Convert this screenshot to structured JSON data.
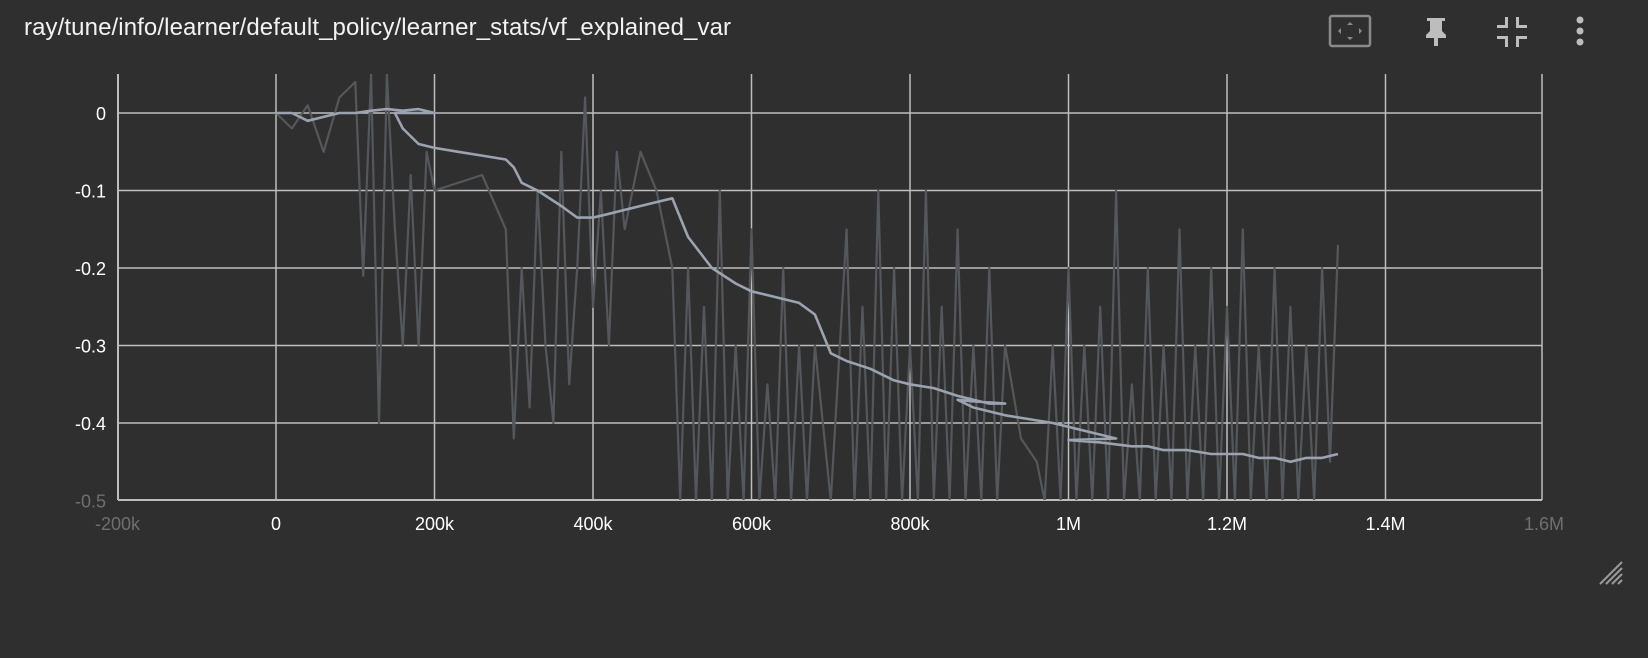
{
  "title": "ray/tune/info/learner/default_policy/learner_stats/vf_explained_var",
  "toolbar": [
    {
      "name": "fit-domain-button",
      "icon": "fit-domain-icon"
    },
    {
      "name": "pin-button",
      "icon": "pin-icon"
    },
    {
      "name": "collapse-button",
      "icon": "collapse-icon"
    },
    {
      "name": "more-menu-button",
      "icon": "more-vert-icon"
    }
  ],
  "colors": {
    "background": "#2f2f2f",
    "grid": "#bdbdbd",
    "raw_series": "#54575b",
    "smoothed_series": "#9aa3af",
    "text": "#ffffff"
  },
  "chart_data": {
    "type": "line",
    "title": "",
    "xlabel": "",
    "ylabel": "",
    "xlim": [
      -200000,
      1600000
    ],
    "ylim": [
      -0.5,
      0.05
    ],
    "grid": true,
    "x_ticks": [
      "-200k",
      "0",
      "200k",
      "400k",
      "600k",
      "800k",
      "1M",
      "1.2M",
      "1.4M",
      "1.6M"
    ],
    "y_ticks": [
      "0",
      "-0.1",
      "-0.2",
      "-0.3",
      "-0.4",
      "-0.5"
    ],
    "series": [
      {
        "x": [
          0,
          20000,
          40000,
          60000,
          80000,
          100000,
          110000,
          120000,
          130000,
          140000,
          150000,
          160000,
          170000,
          180000,
          190000,
          200000,
          260000,
          290000,
          300000,
          310000,
          320000,
          330000,
          340000,
          350000,
          360000,
          370000,
          380000,
          390000,
          400000,
          410000,
          420000,
          430000,
          440000,
          460000,
          480000,
          500000,
          510000,
          520000,
          530000,
          540000,
          550000,
          560000,
          570000,
          580000,
          590000,
          600000,
          610000,
          620000,
          630000,
          640000,
          650000,
          660000,
          670000,
          680000,
          700000,
          720000,
          730000,
          740000,
          750000,
          760000,
          770000,
          780000,
          790000,
          800000,
          810000,
          820000,
          830000,
          840000,
          850000,
          860000,
          870000,
          880000,
          890000,
          900000,
          910000,
          920000,
          940000,
          960000,
          970000,
          980000,
          990000,
          1000000,
          1010000,
          1020000,
          1030000,
          1040000,
          1050000,
          1060000,
          1070000,
          1080000,
          1090000,
          1100000,
          1110000,
          1120000,
          1130000,
          1140000,
          1150000,
          1160000,
          1170000,
          1180000,
          1190000,
          1200000,
          1210000,
          1220000,
          1230000,
          1240000,
          1250000,
          1260000,
          1270000,
          1280000,
          1290000,
          1300000,
          1310000,
          1320000,
          1330000,
          1340000
        ],
        "values": [
          0,
          -0.02,
          0.01,
          -0.05,
          0.02,
          0.04,
          -0.21,
          0.05,
          -0.4,
          0.05,
          -0.15,
          -0.3,
          -0.08,
          -0.3,
          -0.05,
          -0.1,
          -0.08,
          -0.15,
          -0.42,
          -0.2,
          -0.38,
          -0.1,
          -0.3,
          -0.4,
          -0.05,
          -0.35,
          -0.2,
          0.02,
          -0.25,
          -0.1,
          -0.3,
          -0.05,
          -0.15,
          -0.05,
          -0.1,
          -0.2,
          -0.5,
          -0.2,
          -0.5,
          -0.25,
          -0.5,
          -0.1,
          -0.5,
          -0.3,
          -0.5,
          -0.15,
          -0.5,
          -0.35,
          -0.5,
          -0.2,
          -0.5,
          -0.3,
          -0.5,
          -0.3,
          -0.5,
          -0.15,
          -0.5,
          -0.25,
          -0.5,
          -0.1,
          -0.5,
          -0.2,
          -0.5,
          -0.3,
          -0.5,
          -0.1,
          -0.5,
          -0.25,
          -0.5,
          -0.15,
          -0.5,
          -0.3,
          -0.5,
          -0.2,
          -0.5,
          -0.3,
          -0.42,
          -0.45,
          -0.5,
          -0.3,
          -0.5,
          -0.2,
          -0.5,
          -0.3,
          -0.5,
          -0.25,
          -0.5,
          -0.1,
          -0.5,
          -0.35,
          -0.5,
          -0.2,
          -0.5,
          -0.3,
          -0.5,
          -0.15,
          -0.5,
          -0.3,
          -0.5,
          -0.2,
          -0.5,
          -0.25,
          -0.5,
          -0.15,
          -0.5,
          -0.3,
          -0.5,
          -0.2,
          -0.5,
          -0.25,
          -0.5,
          -0.3,
          -0.5,
          -0.2,
          -0.45,
          -0.17
        ]
      },
      {
        "x": [
          0,
          20000,
          40000,
          60000,
          80000,
          100000,
          120000,
          140000,
          160000,
          180000,
          200000,
          190000,
          150000,
          160000,
          180000,
          200000,
          230000,
          260000,
          290000,
          300000,
          310000,
          330000,
          360000,
          380000,
          400000,
          420000,
          440000,
          460000,
          480000,
          500000,
          520000,
          550000,
          580000,
          600000,
          620000,
          640000,
          660000,
          680000,
          700000,
          720000,
          750000,
          780000,
          800000,
          830000,
          860000,
          880000,
          900000,
          920000,
          880000,
          860000,
          880000,
          920000,
          950000,
          980000,
          1000000,
          1020000,
          1040000,
          1060000,
          1000000,
          1040000,
          1080000,
          1100000,
          1120000,
          1150000,
          1180000,
          1200000,
          1220000,
          1240000,
          1260000,
          1280000,
          1300000,
          1320000,
          1340000
        ],
        "values": [
          0,
          0,
          -0.01,
          -0.005,
          0,
          0,
          0.003,
          0.005,
          0.003,
          0.005,
          0,
          0,
          0,
          -0.02,
          -0.04,
          -0.045,
          -0.05,
          -0.055,
          -0.06,
          -0.07,
          -0.09,
          -0.1,
          -0.12,
          -0.135,
          -0.135,
          -0.13,
          -0.125,
          -0.12,
          -0.115,
          -0.11,
          -0.16,
          -0.2,
          -0.22,
          -0.23,
          -0.235,
          -0.24,
          -0.245,
          -0.26,
          -0.31,
          -0.32,
          -0.33,
          -0.345,
          -0.35,
          -0.355,
          -0.365,
          -0.37,
          -0.375,
          -0.375,
          -0.372,
          -0.37,
          -0.38,
          -0.39,
          -0.395,
          -0.4,
          -0.405,
          -0.41,
          -0.415,
          -0.42,
          -0.422,
          -0.425,
          -0.43,
          -0.43,
          -0.435,
          -0.435,
          -0.44,
          -0.44,
          -0.44,
          -0.445,
          -0.445,
          -0.45,
          -0.445,
          -0.445,
          -0.44
        ]
      }
    ]
  }
}
